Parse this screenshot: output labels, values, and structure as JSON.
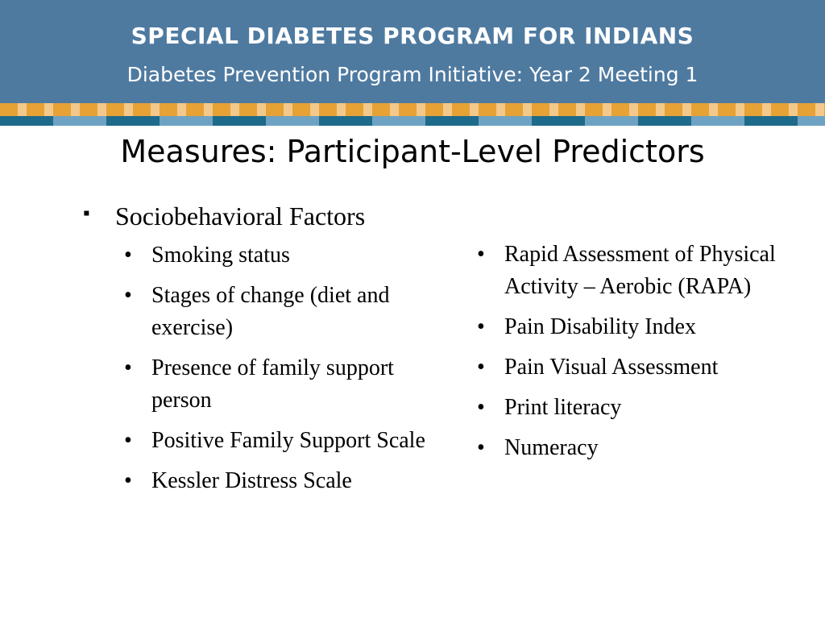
{
  "header": {
    "title": "SPECIAL DIABETES PROGRAM FOR INDIANS",
    "subtitle": "Diabetes Prevention Program Initiative:  Year 2 Meeting 1"
  },
  "slide": {
    "title": "Measures: Participant-Level Predictors",
    "left": {
      "heading": "Sociobehavioral Factors",
      "items": [
        "Smoking status",
        "Stages of change (diet and exercise)",
        "Presence of family support person",
        "Positive Family Support Scale",
        "Kessler Distress Scale"
      ]
    },
    "right": {
      "items": [
        "Rapid Assessment of Physical Activity – Aerobic (RAPA)",
        "Pain Disability Index",
        "Pain Visual Assessment",
        "Print literacy",
        "Numeracy"
      ]
    }
  }
}
